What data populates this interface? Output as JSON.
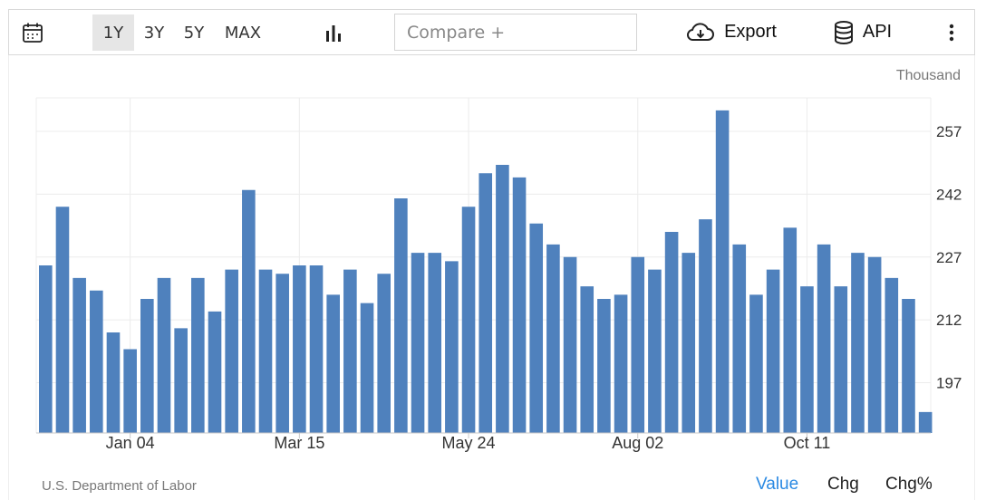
{
  "toolbar": {
    "ranges": [
      "1Y",
      "3Y",
      "5Y",
      "MAX"
    ],
    "active_range": "1Y",
    "compare_placeholder": "Compare +",
    "export_label": "Export",
    "api_label": "API"
  },
  "footer": {
    "source": "U.S. Department of Labor",
    "tabs": [
      "Value",
      "Chg",
      "Chg%"
    ],
    "active_tab": "Value"
  },
  "colors": {
    "bar": "#4f81bd",
    "active_tab": "#2b8ae3"
  },
  "chart_data": {
    "type": "bar",
    "unit": "Thousand",
    "yticks": [
      197,
      212,
      227,
      242,
      257
    ],
    "ylim": [
      185,
      265
    ],
    "xtick_labels": [
      "Jan 04",
      "Mar 15",
      "May 24",
      "Aug 02",
      "Oct 11"
    ],
    "xtick_bar_index": [
      5,
      15,
      25,
      35,
      45
    ],
    "grid": true,
    "values": [
      225,
      239,
      222,
      219,
      209,
      205,
      217,
      222,
      210,
      222,
      214,
      224,
      243,
      224,
      223,
      225,
      225,
      218,
      224,
      216,
      223,
      241,
      228,
      228,
      226,
      239,
      247,
      249,
      246,
      235,
      230,
      227,
      220,
      217,
      218,
      227,
      224,
      233,
      228,
      236,
      262,
      230,
      218,
      224,
      234,
      220,
      230,
      220,
      228,
      227,
      222,
      217,
      190
    ]
  }
}
